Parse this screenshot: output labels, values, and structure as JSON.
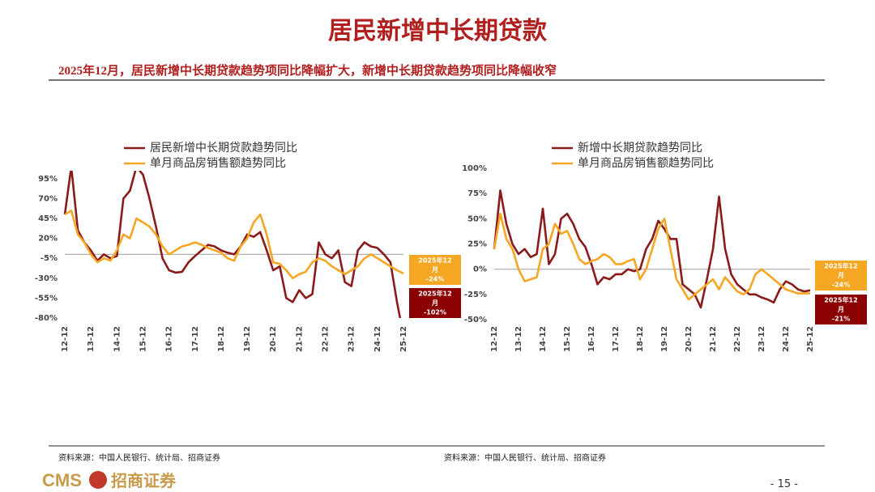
{
  "header": {
    "title": "居民新增中长期贷款",
    "subtitle": "2025年12月，居民新增中长期贷款趋势项同比降幅扩大，新增中长期贷款趋势项同比降幅收窄"
  },
  "chart_data": [
    {
      "type": "line",
      "categories": [
        "12-12",
        null,
        null,
        null,
        "13-12",
        null,
        null,
        null,
        "14-12",
        null,
        null,
        null,
        "15-12",
        null,
        null,
        null,
        "16-12",
        null,
        null,
        null,
        "17-12",
        null,
        null,
        null,
        "18-12",
        null,
        null,
        null,
        "19-12",
        null,
        null,
        null,
        "20-12",
        null,
        null,
        null,
        "21-12",
        null,
        null,
        null,
        "22-12",
        null,
        null,
        null,
        "23-12",
        null,
        null,
        null,
        "24-12",
        null,
        null,
        null,
        "25-12"
      ],
      "series": [
        {
          "name": "居民新增中长期贷款趋势同比",
          "color": "#8b1a1a",
          "values": [
            50,
            110,
            30,
            15,
            5,
            -8,
            0,
            -5,
            -2,
            70,
            80,
            110,
            100,
            70,
            35,
            -5,
            -20,
            -23,
            -22,
            -10,
            -2,
            5,
            12,
            10,
            5,
            2,
            0,
            10,
            25,
            22,
            28,
            5,
            -20,
            -15,
            -55,
            -60,
            -45,
            -55,
            -50,
            15,
            0,
            -5,
            5,
            -35,
            -40,
            5,
            15,
            10,
            8,
            0,
            -10,
            -60,
            -102
          ]
        },
        {
          "name": "单月商品房销售额趋势同比",
          "color": "#f5a623",
          "values": [
            50,
            55,
            25,
            15,
            0,
            -10,
            -5,
            -8,
            5,
            25,
            20,
            45,
            40,
            35,
            25,
            10,
            0,
            5,
            10,
            12,
            15,
            12,
            8,
            5,
            2,
            -5,
            -8,
            10,
            20,
            40,
            50,
            25,
            -10,
            -12,
            -20,
            -30,
            -25,
            -22,
            -10,
            -5,
            -8,
            -15,
            -20,
            -25,
            -20,
            -15,
            -5,
            0,
            -5,
            -10,
            -15,
            -20,
            -24
          ]
        }
      ],
      "ylim": [
        -80,
        105
      ],
      "yticks": [
        {
          "value": -80,
          "label": "-80%"
        },
        {
          "value": -55,
          "label": "-55%"
        },
        {
          "value": -30,
          "label": "-30%"
        },
        {
          "value": -5,
          "label": "-5%"
        },
        {
          "value": 20,
          "label": "20%"
        },
        {
          "value": 45,
          "label": "45%"
        },
        {
          "value": 70,
          "label": "70%"
        },
        {
          "value": 95,
          "label": "95%"
        }
      ],
      "annotations": [
        {
          "lines": [
            "2025年12",
            "月",
            "-24%"
          ],
          "color": "#f5a623"
        },
        {
          "lines": [
            "2025年12",
            "月",
            "-102%"
          ],
          "color": "#8b0000"
        }
      ]
    },
    {
      "type": "line",
      "categories": [
        "12-12",
        null,
        null,
        null,
        "13-12",
        null,
        null,
        null,
        "14-12",
        null,
        null,
        null,
        "15-12",
        null,
        null,
        null,
        "16-12",
        null,
        null,
        null,
        "17-12",
        null,
        null,
        null,
        "18-12",
        null,
        null,
        null,
        "19-12",
        null,
        null,
        null,
        "20-12",
        null,
        null,
        null,
        "21-12",
        null,
        null,
        null,
        "22-12",
        null,
        null,
        null,
        "23-12",
        null,
        null,
        null,
        "24-12",
        null,
        null,
        null,
        "25-12"
      ],
      "series": [
        {
          "name": "新增中长期贷款趋势同比",
          "color": "#8b1a1a",
          "values": [
            20,
            78,
            45,
            25,
            15,
            20,
            12,
            15,
            60,
            5,
            15,
            50,
            55,
            45,
            30,
            22,
            5,
            -15,
            -8,
            -10,
            -5,
            -5,
            0,
            -2,
            0,
            20,
            30,
            48,
            40,
            30,
            30,
            -15,
            -20,
            -25,
            -38,
            -10,
            20,
            72,
            20,
            -5,
            -15,
            -20,
            -25,
            -25,
            -28,
            -30,
            -33,
            -20,
            -12,
            -15,
            -20,
            -22,
            -21
          ]
        },
        {
          "name": "单月商品房销售额趋势同比",
          "color": "#f5a623",
          "values": [
            20,
            55,
            30,
            20,
            0,
            -12,
            -10,
            -8,
            20,
            25,
            45,
            35,
            38,
            25,
            10,
            5,
            8,
            10,
            15,
            12,
            5,
            5,
            8,
            10,
            -10,
            0,
            20,
            40,
            50,
            20,
            -10,
            -20,
            -30,
            -25,
            -20,
            -15,
            -10,
            -20,
            -8,
            -15,
            -22,
            -25,
            -20,
            -5,
            0,
            -5,
            -10,
            -15,
            -20,
            -22,
            -24,
            -24,
            -24
          ]
        }
      ],
      "ylim": [
        -50,
        100
      ],
      "yticks": [
        {
          "value": -50,
          "label": "-50%"
        },
        {
          "value": -25,
          "label": "-25%"
        },
        {
          "value": 0,
          "label": "0%"
        },
        {
          "value": 25,
          "label": "25%"
        },
        {
          "value": 50,
          "label": "50%"
        },
        {
          "value": 75,
          "label": "75%"
        },
        {
          "value": 100,
          "label": "100%"
        }
      ],
      "annotations": [
        {
          "lines": [
            "2025年12",
            "月",
            "-24%"
          ],
          "color": "#f5a623"
        },
        {
          "lines": [
            "2025年12",
            "月",
            "-21%"
          ],
          "color": "#8b0000"
        }
      ]
    }
  ],
  "footer": {
    "sources": [
      "资料来源：中国人民银行、统计局、招商证券",
      "资料来源：中国人民银行、统计局、招商证券"
    ],
    "logo_latin": "CMS",
    "logo_cn": "招商证券",
    "page": "- 15 -"
  }
}
